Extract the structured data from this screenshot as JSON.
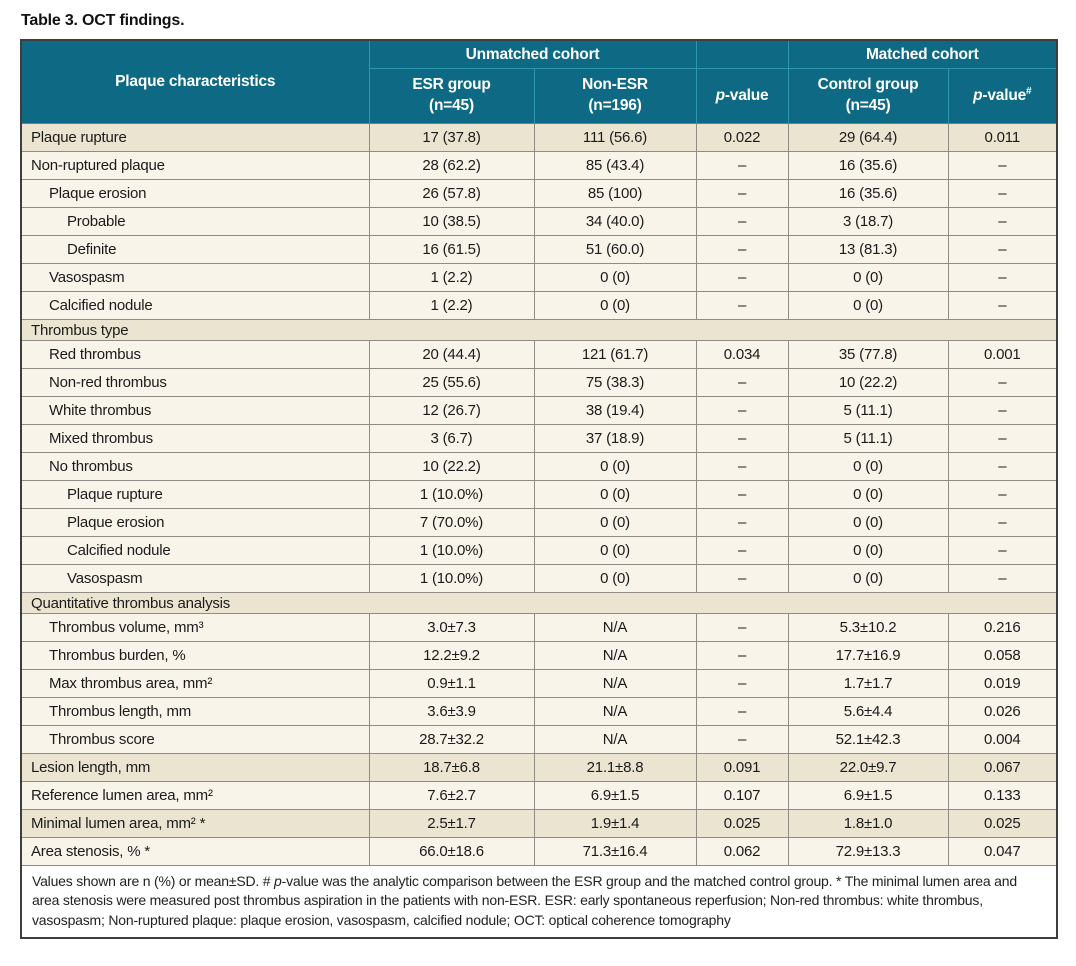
{
  "title": "Table 3. OCT findings.",
  "colors": {
    "header_bg": "#0e6984",
    "header_divider": "#2f97ad",
    "header_text": "#ffffff",
    "row_light": "#f8f4e9",
    "row_dark": "#ebe4d0",
    "outer_border": "#3e3e3c",
    "grid_border": "#8e8c84",
    "body_text": "#1b1b1b"
  },
  "header": {
    "plaque_col": "Plaque characteristics",
    "unmatched_group": "Unmatched cohort",
    "matched_group": "Matched cohort",
    "esr_col": "ESR group\n(n=45)",
    "nonesr_col": "Non-ESR\n(n=196)",
    "pvalue1_italic": "p",
    "pvalue1_rest": "-value",
    "control_col": "Control group\n(n=45)",
    "pvalue2_italic": "p",
    "pvalue2_rest": "-value",
    "pvalue2_sup": "#"
  },
  "rows": [
    {
      "label": "Plaque rupture",
      "indent": 0,
      "section": false,
      "shade": "dark",
      "esr": "17 (37.8)",
      "nonesr": "111 (56.6)",
      "p1": "0.022",
      "control": "29 (64.4)",
      "p2": "0.011"
    },
    {
      "label": "Non-ruptured plaque",
      "indent": 0,
      "section": false,
      "shade": "light",
      "esr": "28 (62.2)",
      "nonesr": "85 (43.4)",
      "p1": "–",
      "control": "16 (35.6)",
      "p2": "–"
    },
    {
      "label": "Plaque erosion",
      "indent": 1,
      "section": false,
      "shade": "light",
      "esr": "26 (57.8)",
      "nonesr": "85 (100)",
      "p1": "–",
      "control": "16 (35.6)",
      "p2": "–"
    },
    {
      "label": "Probable",
      "indent": 2,
      "section": false,
      "shade": "light",
      "esr": "10 (38.5)",
      "nonesr": "34 (40.0)",
      "p1": "–",
      "control": "3 (18.7)",
      "p2": "–"
    },
    {
      "label": "Definite",
      "indent": 2,
      "section": false,
      "shade": "light",
      "esr": "16 (61.5)",
      "nonesr": "51 (60.0)",
      "p1": "–",
      "control": "13 (81.3)",
      "p2": "–"
    },
    {
      "label": "Vasospasm",
      "indent": 1,
      "section": false,
      "shade": "light",
      "esr": "1 (2.2)",
      "nonesr": "0 (0)",
      "p1": "–",
      "control": "0 (0)",
      "p2": "–"
    },
    {
      "label": "Calcified nodule",
      "indent": 1,
      "section": false,
      "shade": "light",
      "esr": "1 (2.2)",
      "nonesr": "0 (0)",
      "p1": "–",
      "control": "0 (0)",
      "p2": "–"
    },
    {
      "label": "Thrombus type",
      "indent": 0,
      "section": true,
      "shade": "dark"
    },
    {
      "label": "Red thrombus",
      "indent": 1,
      "section": false,
      "shade": "light",
      "esr": "20 (44.4)",
      "nonesr": "121 (61.7)",
      "p1": "0.034",
      "control": "35 (77.8)",
      "p2": "0.001"
    },
    {
      "label": "Non-red thrombus",
      "indent": 1,
      "section": false,
      "shade": "light",
      "esr": "25 (55.6)",
      "nonesr": "75 (38.3)",
      "p1": "–",
      "control": "10 (22.2)",
      "p2": "–"
    },
    {
      "label": "White thrombus",
      "indent": 1,
      "section": false,
      "shade": "light",
      "esr": "12 (26.7)",
      "nonesr": "38 (19.4)",
      "p1": "–",
      "control": "5 (11.1)",
      "p2": "–"
    },
    {
      "label": "Mixed thrombus",
      "indent": 1,
      "section": false,
      "shade": "light",
      "esr": "3 (6.7)",
      "nonesr": "37 (18.9)",
      "p1": "–",
      "control": "5 (11.1)",
      "p2": "–"
    },
    {
      "label": "No thrombus",
      "indent": 1,
      "section": false,
      "shade": "light",
      "esr": "10 (22.2)",
      "nonesr": "0 (0)",
      "p1": "–",
      "control": "0 (0)",
      "p2": "–"
    },
    {
      "label": "Plaque rupture",
      "indent": 2,
      "section": false,
      "shade": "light",
      "esr": "1 (10.0%)",
      "nonesr": "0 (0)",
      "p1": "–",
      "control": "0 (0)",
      "p2": "–"
    },
    {
      "label": "Plaque erosion",
      "indent": 2,
      "section": false,
      "shade": "light",
      "esr": "7 (70.0%)",
      "nonesr": "0 (0)",
      "p1": "–",
      "control": "0 (0)",
      "p2": "–"
    },
    {
      "label": "Calcified nodule",
      "indent": 2,
      "section": false,
      "shade": "light",
      "esr": "1 (10.0%)",
      "nonesr": "0 (0)",
      "p1": "–",
      "control": "0 (0)",
      "p2": "–"
    },
    {
      "label": "Vasospasm",
      "indent": 2,
      "section": false,
      "shade": "light",
      "esr": "1 (10.0%)",
      "nonesr": "0 (0)",
      "p1": "–",
      "control": "0 (0)",
      "p2": "–"
    },
    {
      "label": "Quantitative thrombus analysis",
      "indent": 0,
      "section": true,
      "shade": "dark"
    },
    {
      "label": "Thrombus volume, mm³",
      "indent": 1,
      "section": false,
      "shade": "light",
      "esr": "3.0±7.3",
      "nonesr": "N/A",
      "p1": "–",
      "control": "5.3±10.2",
      "p2": "0.216"
    },
    {
      "label": "Thrombus burden, %",
      "indent": 1,
      "section": false,
      "shade": "light",
      "esr": "12.2±9.2",
      "nonesr": "N/A",
      "p1": "–",
      "control": "17.7±16.9",
      "p2": "0.058"
    },
    {
      "label": "Max thrombus area, mm²",
      "indent": 1,
      "section": false,
      "shade": "light",
      "esr": "0.9±1.1",
      "nonesr": "N/A",
      "p1": "–",
      "control": "1.7±1.7",
      "p2": "0.019"
    },
    {
      "label": "Thrombus length, mm",
      "indent": 1,
      "section": false,
      "shade": "light",
      "esr": "3.6±3.9",
      "nonesr": "N/A",
      "p1": "–",
      "control": "5.6±4.4",
      "p2": "0.026"
    },
    {
      "label": "Thrombus score",
      "indent": 1,
      "section": false,
      "shade": "light",
      "esr": "28.7±32.2",
      "nonesr": "N/A",
      "p1": "–",
      "control": "52.1±42.3",
      "p2": "0.004"
    },
    {
      "label": "Lesion length, mm",
      "indent": 0,
      "section": false,
      "shade": "dark",
      "esr": "18.7±6.8",
      "nonesr": "21.1±8.8",
      "p1": "0.091",
      "control": "22.0±9.7",
      "p2": "0.067"
    },
    {
      "label": "Reference lumen area, mm²",
      "indent": 0,
      "section": false,
      "shade": "light",
      "esr": "7.6±2.7",
      "nonesr": "6.9±1.5",
      "p1": "0.107",
      "control": "6.9±1.5",
      "p2": "0.133"
    },
    {
      "label": "Minimal lumen area, mm² *",
      "indent": 0,
      "section": false,
      "shade": "dark",
      "esr": "2.5±1.7",
      "nonesr": "1.9±1.4",
      "p1": "0.025",
      "control": "1.8±1.0",
      "p2": "0.025"
    },
    {
      "label": "Area stenosis, % *",
      "indent": 0,
      "section": false,
      "shade": "light",
      "esr": "66.0±18.6",
      "nonesr": "71.3±16.4",
      "p1": "0.062",
      "control": "72.9±13.3",
      "p2": "0.047"
    }
  ],
  "footnote": {
    "pre": "Values shown are n (%) or mean±SD. # ",
    "italic": "p",
    "post": "-value was the analytic comparison between the ESR group and the matched control group. * The minimal lumen area and area stenosis were measured post thrombus aspiration in the patients with non-ESR. ESR: early spontaneous reperfusion; Non-red thrombus: white thrombus, vasospasm; Non-ruptured plaque: plaque erosion, vasospasm, calcified nodule; OCT: optical coherence tomography"
  }
}
